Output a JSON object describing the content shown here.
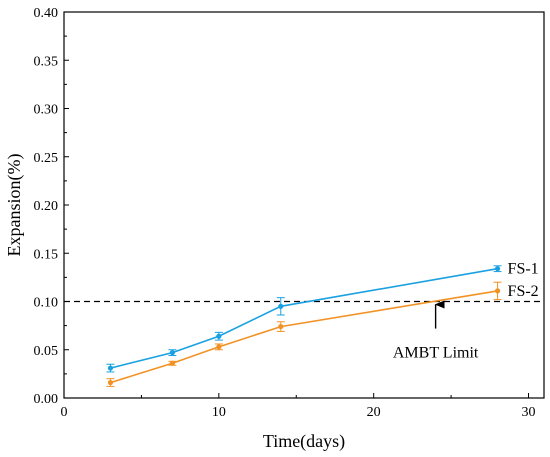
{
  "chart_data": {
    "type": "line",
    "xlabel": "Time(days)",
    "ylabel": "Expansion(%)",
    "xlim": [
      0,
      31
    ],
    "ylim": [
      0,
      0.4
    ],
    "xticks": [
      0,
      10,
      20,
      30
    ],
    "yticks": [
      0.0,
      0.05,
      0.1,
      0.15,
      0.2,
      0.25,
      0.3,
      0.35,
      0.4
    ],
    "xtick_labels": [
      "0",
      "10",
      "20",
      "30"
    ],
    "ytick_labels": [
      "0.00",
      "0.05",
      "0.10",
      "0.15",
      "0.20",
      "0.25",
      "0.30",
      "0.35",
      "0.40"
    ],
    "grid": false,
    "series": [
      {
        "name": "FS-1",
        "color": "#1ba1e2",
        "x": [
          3,
          7,
          10,
          14,
          28
        ],
        "y": [
          0.031,
          0.047,
          0.064,
          0.095,
          0.134
        ],
        "err": [
          0.004,
          0.003,
          0.004,
          0.009,
          0.003
        ]
      },
      {
        "name": "FS-2",
        "color": "#f39224",
        "x": [
          3,
          7,
          10,
          14,
          28
        ],
        "y": [
          0.016,
          0.036,
          0.053,
          0.074,
          0.111
        ],
        "err": [
          0.004,
          0.002,
          0.003,
          0.005,
          0.009
        ]
      }
    ],
    "reference_line": {
      "y": 0.1,
      "style": "dashed",
      "color": "#000000"
    },
    "annotation": {
      "text": "AMBT Limit",
      "arrow_x": 24,
      "arrow_target_y": 0.1,
      "text_x": 24,
      "text_y": 0.045
    }
  }
}
